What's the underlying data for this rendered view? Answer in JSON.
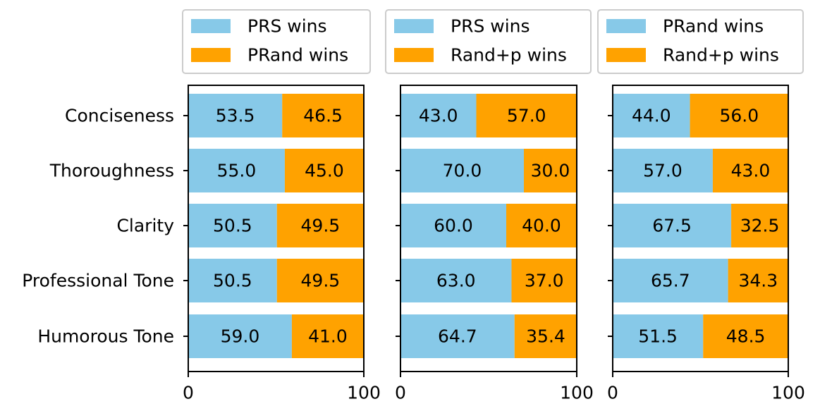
{
  "chart_data": {
    "type": "bar",
    "orientation": "horizontal",
    "stacked": true,
    "categories": [
      "Conciseness",
      "Thoroughness",
      "Clarity",
      "Professional Tone",
      "Humorous Tone"
    ],
    "xlim": [
      0,
      100
    ],
    "xticks": [
      "0",
      "100"
    ],
    "legend_position": "top",
    "colors": {
      "first": "#87c9e8",
      "second": "#ffa200"
    },
    "panels": [
      {
        "series": [
          {
            "name": "PRS wins",
            "values": [
              53.5,
              55.0,
              50.5,
              50.5,
              59.0
            ],
            "labels": [
              "53.5",
              "55.0",
              "50.5",
              "50.5",
              "59.0"
            ]
          },
          {
            "name": "PRand wins",
            "values": [
              46.5,
              45.0,
              49.5,
              49.5,
              41.0
            ],
            "labels": [
              "46.5",
              "45.0",
              "49.5",
              "49.5",
              "41.0"
            ]
          }
        ]
      },
      {
        "series": [
          {
            "name": "PRS wins",
            "values": [
              43.0,
              70.0,
              60.0,
              63.0,
              64.7
            ],
            "labels": [
              "43.0",
              "70.0",
              "60.0",
              "63.0",
              "64.7"
            ]
          },
          {
            "name": "Rand+p wins",
            "values": [
              57.0,
              30.0,
              40.0,
              37.0,
              35.4
            ],
            "labels": [
              "57.0",
              "30.0",
              "40.0",
              "37.0",
              "35.4"
            ]
          }
        ]
      },
      {
        "series": [
          {
            "name": "PRand wins",
            "values": [
              44.0,
              57.0,
              67.5,
              65.7,
              51.5
            ],
            "labels": [
              "44.0",
              "57.0",
              "67.5",
              "65.7",
              "51.5"
            ]
          },
          {
            "name": "Rand+p wins",
            "values": [
              56.0,
              43.0,
              32.5,
              34.3,
              48.5
            ],
            "labels": [
              "56.0",
              "43.0",
              "32.5",
              "34.3",
              "48.5"
            ]
          }
        ]
      }
    ]
  }
}
